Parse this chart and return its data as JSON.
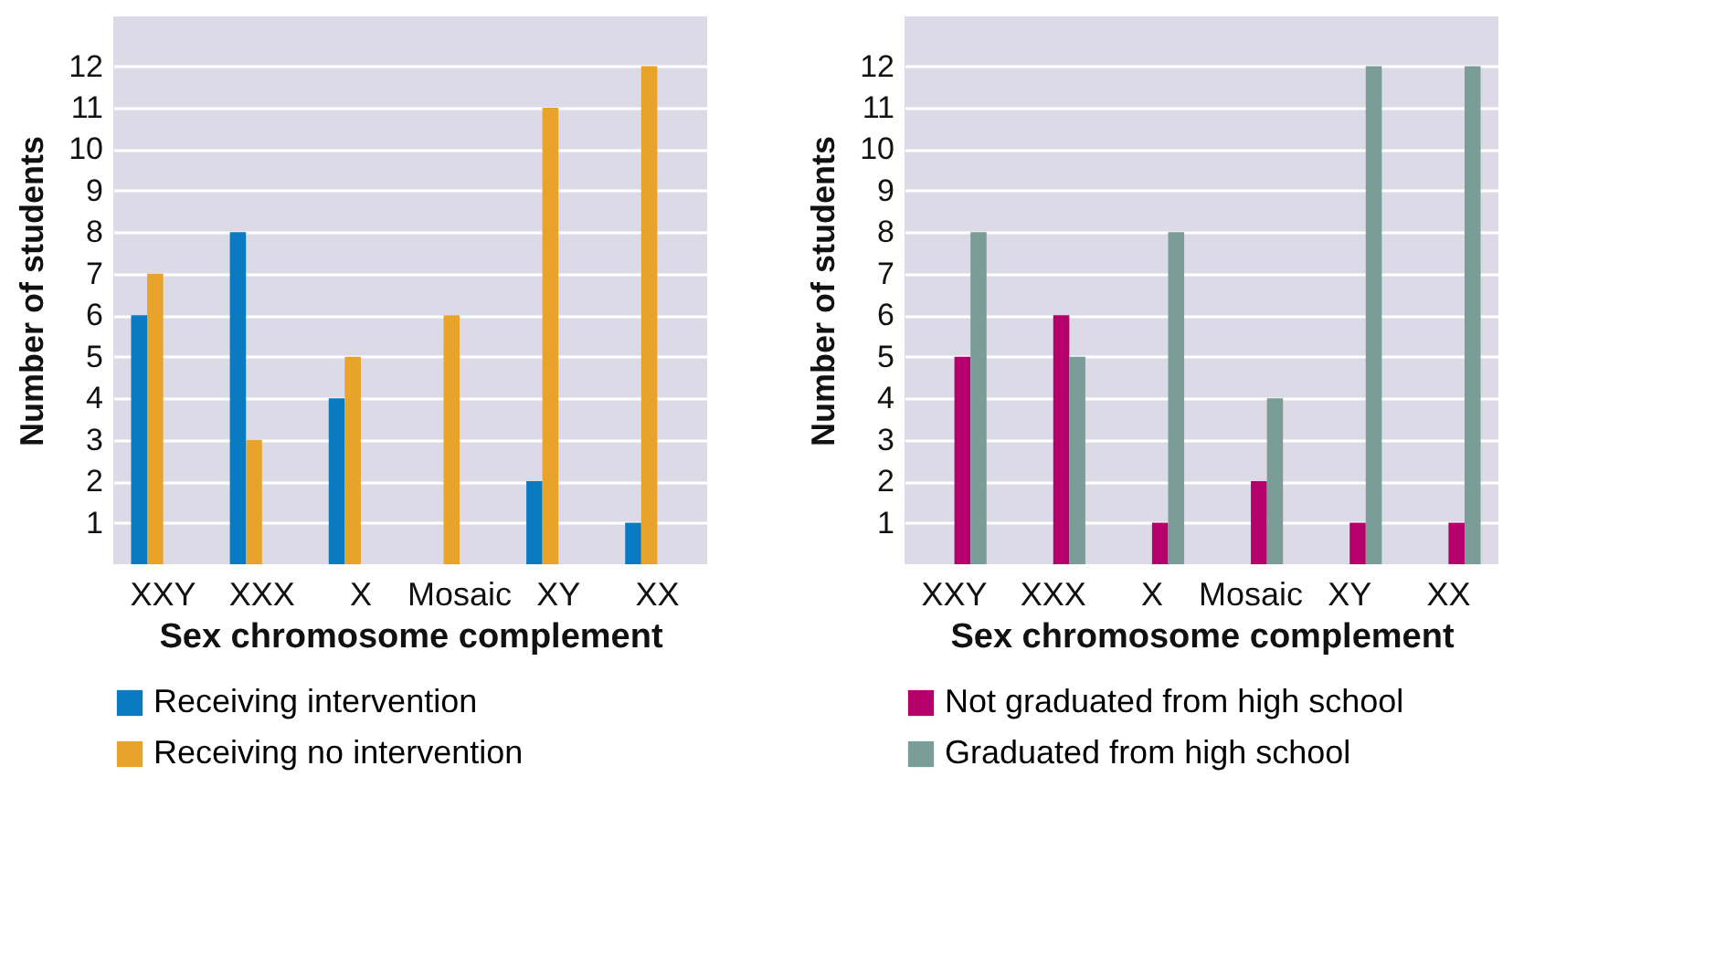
{
  "chart_data": [
    {
      "type": "bar",
      "xlabel": "Sex chromosome complement",
      "ylabel": "Number of students",
      "categories": [
        "XXY",
        "XXX",
        "X",
        "Mosaic",
        "XY",
        "XX"
      ],
      "series": [
        {
          "name": "Receiving intervention",
          "color": "#0a7bc1",
          "values": [
            6,
            8,
            4,
            null,
            2,
            1
          ]
        },
        {
          "name": "Receiving no intervention",
          "color": "#e8a42a",
          "values": [
            7,
            3,
            5,
            6,
            11,
            12
          ]
        }
      ],
      "ylim": [
        0,
        13.2
      ],
      "yticks": [
        1,
        2,
        3,
        4,
        5,
        6,
        7,
        8,
        9,
        10,
        11,
        12
      ],
      "grid": "y",
      "legend": "bottom"
    },
    {
      "type": "bar",
      "xlabel": "Sex chromosome complement",
      "ylabel": "Number of students",
      "categories": [
        "XXY",
        "XXX",
        "X",
        "Mosaic",
        "XY",
        "XX"
      ],
      "series": [
        {
          "name": "Not graduated from high school",
          "color": "#b5006b",
          "values": [
            5,
            6,
            1,
            2,
            1,
            1
          ]
        },
        {
          "name": "Graduated from high school",
          "color": "#7a9e97",
          "values": [
            8,
            5,
            8,
            4,
            12,
            12
          ]
        }
      ],
      "ylim": [
        0,
        13.2
      ],
      "yticks": [
        1,
        2,
        3,
        4,
        5,
        6,
        7,
        8,
        9,
        10,
        11,
        12
      ],
      "grid": "y",
      "legend": "bottom"
    }
  ]
}
